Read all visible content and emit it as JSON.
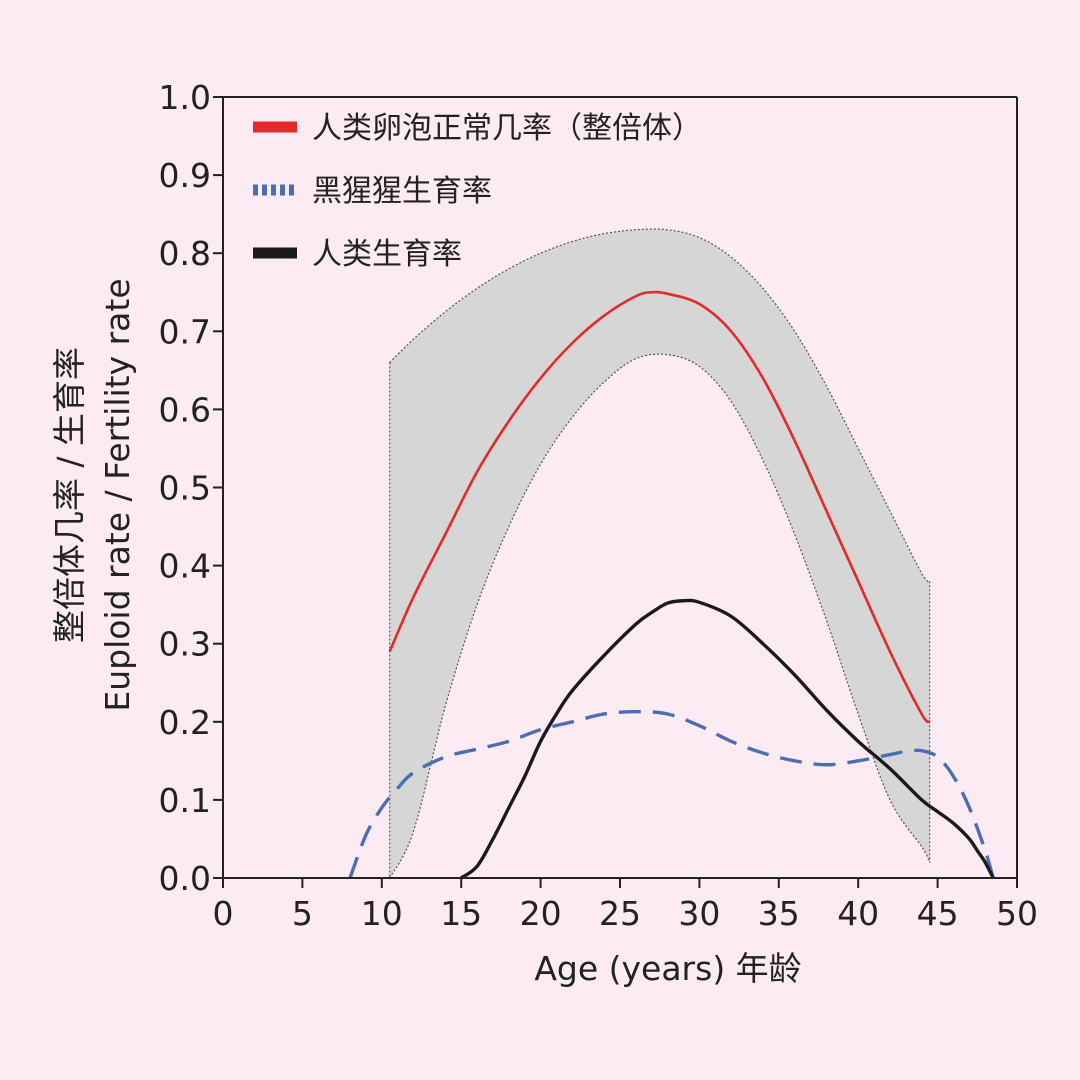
{
  "chart_data": {
    "type": "line",
    "xlabel": "Age (years) 年龄",
    "ylabel_line1": "整倍体几率",
    "ylabel_line1_suffix": " / 生育率",
    "ylabel_line2": "Euploid rate / Fertility rate",
    "xlim": [
      0,
      50
    ],
    "ylim": [
      0,
      1.0
    ],
    "x_ticks": [
      0,
      5,
      10,
      15,
      20,
      25,
      30,
      35,
      40,
      45,
      50
    ],
    "x_tick_labels": [
      "0",
      "5",
      "10",
      "15",
      "20",
      "25",
      "30",
      "35",
      "40",
      "45",
      "50"
    ],
    "y_ticks": [
      0,
      0.1,
      0.2,
      0.3,
      0.4,
      0.5,
      0.6,
      0.7,
      0.8,
      0.9,
      1.0
    ],
    "y_tick_labels": [
      "0.0",
      "0.1",
      "0.2",
      "0.3",
      "0.4",
      "0.5",
      "0.6",
      "0.7",
      "0.8",
      "0.9",
      "1.0"
    ],
    "grid": false,
    "legend_position": "top-left",
    "band": {
      "x": [
        10.5,
        12,
        14,
        16,
        18,
        20,
        22,
        24,
        26,
        28,
        30,
        32,
        34,
        36,
        38,
        40,
        42,
        44,
        44.5
      ],
      "upper": [
        0.66,
        0.69,
        0.725,
        0.755,
        0.78,
        0.8,
        0.815,
        0.825,
        0.83,
        0.83,
        0.82,
        0.795,
        0.755,
        0.7,
        0.63,
        0.55,
        0.47,
        0.39,
        0.38
      ],
      "lower": [
        0.0,
        0.06,
        0.22,
        0.35,
        0.45,
        0.53,
        0.59,
        0.635,
        0.665,
        0.67,
        0.655,
        0.61,
        0.535,
        0.44,
        0.33,
        0.21,
        0.1,
        0.04,
        0.02
      ],
      "color": "#d6d6d6"
    },
    "series": [
      {
        "name": "人类卵泡正常几率（整倍体）",
        "style": "solid",
        "color": "#e12a2a",
        "x": [
          10.5,
          12,
          14,
          16,
          18,
          20,
          22,
          24,
          26,
          27,
          28,
          30,
          32,
          34,
          36,
          38,
          40,
          42,
          44,
          44.5
        ],
        "y": [
          0.29,
          0.36,
          0.44,
          0.52,
          0.585,
          0.64,
          0.685,
          0.72,
          0.745,
          0.75,
          0.748,
          0.735,
          0.7,
          0.64,
          0.56,
          0.47,
          0.38,
          0.29,
          0.21,
          0.2
        ]
      },
      {
        "name": "黑猩猩生育率",
        "style": "dashed",
        "color": "#4b6db4",
        "x": [
          8,
          9,
          10,
          11,
          12,
          14,
          16,
          18,
          20,
          22,
          24,
          26,
          28,
          30,
          32,
          34,
          36,
          38,
          40,
          42,
          43,
          44,
          45,
          46,
          47,
          48,
          48.5
        ],
        "y": [
          0.0,
          0.055,
          0.09,
          0.115,
          0.135,
          0.155,
          0.165,
          0.175,
          0.19,
          0.2,
          0.21,
          0.213,
          0.21,
          0.195,
          0.175,
          0.16,
          0.15,
          0.145,
          0.15,
          0.158,
          0.162,
          0.163,
          0.155,
          0.13,
          0.09,
          0.035,
          0.0
        ]
      },
      {
        "name": "人类生育率",
        "style": "solid",
        "color": "#1a1a1a",
        "x": [
          15,
          16,
          17,
          18,
          19,
          20,
          21,
          22,
          24,
          26,
          27,
          28,
          29,
          30,
          32,
          34,
          36,
          38,
          40,
          42,
          44,
          45,
          46,
          47,
          47.5,
          48,
          48.5
        ],
        "y": [
          0.0,
          0.015,
          0.05,
          0.09,
          0.13,
          0.175,
          0.21,
          0.24,
          0.285,
          0.325,
          0.34,
          0.352,
          0.355,
          0.353,
          0.335,
          0.3,
          0.26,
          0.215,
          0.175,
          0.14,
          0.1,
          0.085,
          0.07,
          0.05,
          0.035,
          0.02,
          0.0
        ]
      }
    ]
  }
}
